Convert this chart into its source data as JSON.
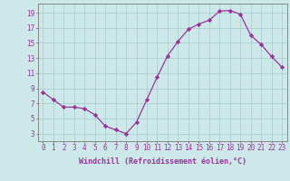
{
  "x": [
    0,
    1,
    2,
    3,
    4,
    5,
    6,
    7,
    8,
    9,
    10,
    11,
    12,
    13,
    14,
    15,
    16,
    17,
    18,
    19,
    20,
    21,
    22,
    23
  ],
  "y": [
    8.5,
    7.5,
    6.5,
    6.5,
    6.3,
    5.5,
    4.0,
    3.5,
    3.0,
    4.5,
    7.5,
    10.5,
    13.3,
    15.2,
    16.8,
    17.5,
    18.0,
    19.2,
    19.3,
    18.8,
    16.0,
    14.8,
    13.2,
    11.8
  ],
  "line_color": "#993399",
  "marker": "D",
  "marker_size": 2.2,
  "bg_color": "#cce8e8",
  "grid_color": "#aacece",
  "xlabel": "Windchill (Refroidissement éolien,°C)",
  "xlabel_fontsize": 6.0,
  "ytick_labels": [
    "3",
    "5",
    "7",
    "9",
    "11",
    "13",
    "15",
    "17",
    "19"
  ],
  "ytick_values": [
    3,
    5,
    7,
    9,
    11,
    13,
    15,
    17,
    19
  ],
  "xlim": [
    -0.5,
    23.5
  ],
  "ylim": [
    2.0,
    20.2
  ],
  "tick_color": "#993399",
  "tick_fontsize": 5.5,
  "axis_color": "#888888"
}
